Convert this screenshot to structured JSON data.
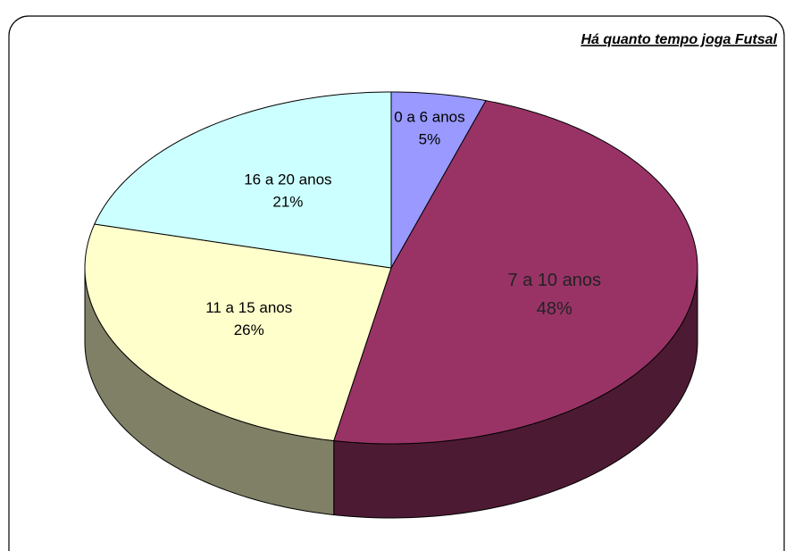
{
  "chart_data": {
    "type": "pie3d",
    "legend_title": "Há quanto tempo joga Futsal",
    "categories": [
      "0 a 6 anos",
      "7 a 10 anos",
      "11 a 15 anos",
      "16 a 20 anos"
    ],
    "values": [
      5,
      48,
      26,
      21
    ],
    "value_labels": [
      "5%",
      "48%",
      "26%",
      "21%"
    ],
    "colors": [
      "#9999ff",
      "#993366",
      "#ffffcc",
      "#ccffff"
    ]
  }
}
